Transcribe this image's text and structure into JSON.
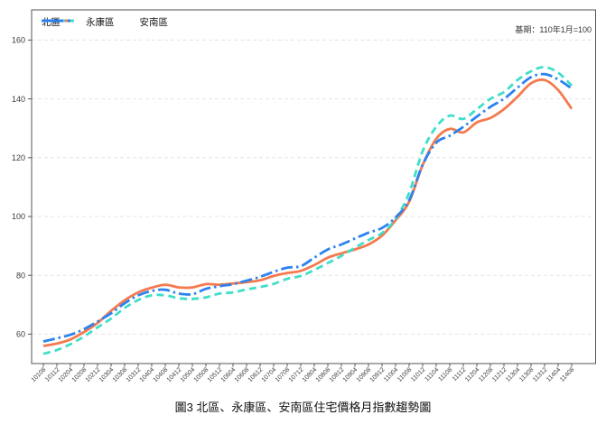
{
  "figure": {
    "caption": "圖3 北區、永康區、安南區住宅價格月指數趨勢圖",
    "annotation": "基期：110年1月=100"
  },
  "chart_data": {
    "type": "line",
    "title": "圖3 北區、永康區、安南區住宅價格月指數趨勢圖",
    "annotation": "基期：110年1月=100",
    "categories": [
      "10108",
      "10112",
      "10204",
      "10208",
      "10212",
      "10304",
      "10308",
      "10312",
      "10404",
      "10408",
      "10412",
      "10504",
      "10508",
      "10512",
      "10604",
      "10608",
      "10612",
      "10704",
      "10708",
      "10712",
      "10804",
      "10808",
      "10812",
      "10904",
      "10908",
      "10912",
      "11004",
      "11008",
      "11012",
      "11104",
      "11108",
      "11112",
      "11204",
      "11208",
      "11212",
      "11304",
      "11308",
      "11312",
      "11404",
      "11408"
    ],
    "series": [
      {
        "name": "北區",
        "slug": "north-district",
        "color": "#F5794E",
        "style": "solid",
        "values": [
          56.0,
          56.8,
          58.2,
          60.7,
          63.8,
          67.9,
          71.5,
          74.2,
          75.8,
          76.8,
          75.9,
          75.9,
          77.0,
          76.8,
          77.2,
          77.7,
          78.3,
          79.8,
          80.8,
          81.5,
          83.5,
          86.0,
          87.5,
          88.8,
          90.5,
          93.5,
          98.7,
          105.0,
          117.5,
          126.4,
          129.8,
          128.6,
          132.0,
          133.5,
          136.5,
          140.7,
          145.3,
          146.4,
          143.0,
          136.6
        ]
      },
      {
        "name": "永康區",
        "slug": "yongkang-district",
        "color": "#3EDEC8",
        "style": "dashed",
        "values": [
          53.3,
          54.6,
          56.6,
          59.2,
          62.3,
          65.3,
          68.9,
          71.6,
          73.2,
          73.2,
          72.2,
          72.0,
          72.5,
          73.8,
          74.2,
          75.2,
          76.0,
          77.1,
          78.8,
          79.8,
          81.8,
          84.2,
          86.6,
          89.4,
          92.0,
          94.4,
          99.2,
          108.0,
          122.2,
          130.5,
          134.3,
          133.2,
          136.5,
          140.0,
          142.3,
          146.4,
          149.4,
          150.8,
          148.9,
          144.5
        ]
      },
      {
        "name": "安南區",
        "slug": "annan-district",
        "color": "#2C83EE",
        "style": "dashdot",
        "values": [
          57.5,
          58.6,
          59.8,
          61.7,
          64.3,
          67.1,
          70.5,
          73.2,
          74.7,
          75.1,
          73.8,
          73.6,
          75.4,
          76.3,
          77.0,
          78.2,
          79.5,
          81.2,
          82.6,
          83.1,
          86.0,
          88.8,
          90.5,
          92.5,
          94.5,
          96.1,
          99.7,
          105.5,
          117.6,
          125.1,
          127.5,
          130.5,
          134.0,
          137.3,
          140.0,
          143.8,
          147.4,
          148.4,
          146.6,
          143.5
        ]
      }
    ],
    "yticks": [
      60,
      80,
      100,
      120,
      140,
      160
    ],
    "ylim": [
      50,
      164.5
    ],
    "grid": "horizontal-dashed",
    "legend_position": "top-left-horizontal",
    "colors": {
      "grid": "#E4E4E4",
      "spine": "#555555",
      "tick_text": "#3A3A3A"
    }
  }
}
